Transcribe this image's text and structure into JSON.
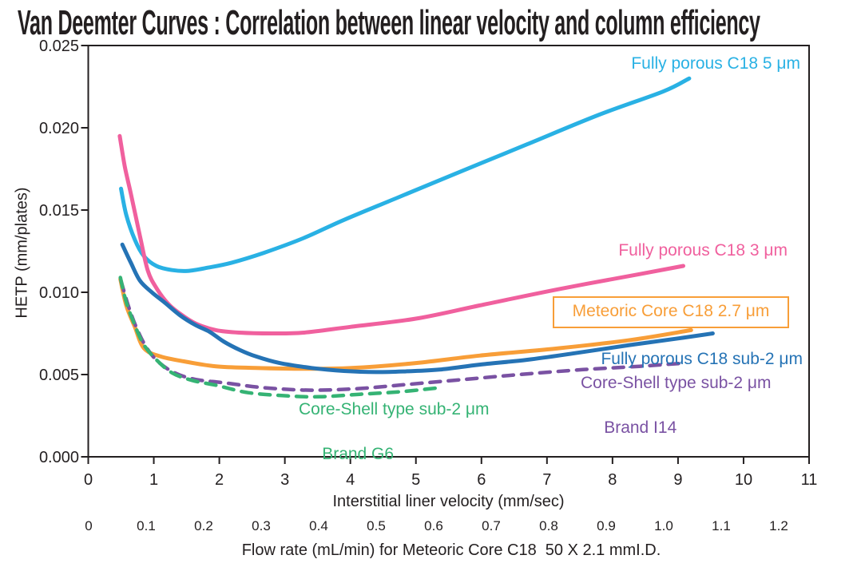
{
  "title": "Van Deemter Curves : Correlation between linear velocity and column efficiency",
  "chart_data": {
    "type": "line",
    "title": "Van Deemter Curves : Correlation between linear velocity and column efficiency",
    "grid": false,
    "legend_position": "labels-near-curves",
    "x_axis": {
      "label": "Interstitial liner velocity (mm/sec)",
      "min": 0,
      "max": 11,
      "ticks": [
        0,
        1,
        2,
        3,
        4,
        5,
        6,
        7,
        8,
        9,
        10,
        11
      ]
    },
    "x_axis2": {
      "label": "Flow rate (mL/min) for Meteoric Core C18  50 X 2.1 mmI.D.",
      "ticks": [
        "0",
        "0.1",
        "0.2",
        "0.3",
        "0.4",
        "0.5",
        "0.6",
        "0.7",
        "0.8",
        "0.9",
        "1.0",
        "1.1",
        "1.2"
      ]
    },
    "y_axis": {
      "label": "HETP (mm/plates)",
      "min": 0,
      "max": 0.025,
      "ticks": [
        "0.000",
        "0.005",
        "0.010",
        "0.015",
        "0.020",
        "0.025"
      ]
    },
    "axis_color": "#231f20",
    "series": [
      {
        "id": "fully-porous-c18-5um",
        "label": "Fully porous C18 5 μm",
        "color": "#29b1e4",
        "dashed": false,
        "points": [
          [
            0.5,
            0.0163
          ],
          [
            0.58,
            0.0147
          ],
          [
            0.71,
            0.0132
          ],
          [
            0.85,
            0.0122
          ],
          [
            1.04,
            0.0116
          ],
          [
            1.28,
            0.01135
          ],
          [
            1.52,
            0.0113
          ],
          [
            1.83,
            0.0115
          ],
          [
            2.19,
            0.0118
          ],
          [
            2.68,
            0.0124
          ],
          [
            3.29,
            0.0133
          ],
          [
            3.9,
            0.0144
          ],
          [
            4.75,
            0.0158
          ],
          [
            5.72,
            0.0174
          ],
          [
            6.7,
            0.019
          ],
          [
            7.8,
            0.0208
          ],
          [
            8.77,
            0.0222
          ],
          [
            9.17,
            0.023
          ]
        ]
      },
      {
        "id": "fully-porous-c18-3um",
        "label": "Fully porous C18 3 μm",
        "color": "#f0609e",
        "dashed": false,
        "points": [
          [
            0.48,
            0.0195
          ],
          [
            0.56,
            0.0176
          ],
          [
            0.65,
            0.016
          ],
          [
            0.79,
            0.0134
          ],
          [
            0.91,
            0.0113
          ],
          [
            1.05,
            0.0102
          ],
          [
            1.22,
            0.0093
          ],
          [
            1.4,
            0.0087
          ],
          [
            1.64,
            0.0081
          ],
          [
            1.95,
            0.0077
          ],
          [
            2.31,
            0.00755
          ],
          [
            2.8,
            0.0075
          ],
          [
            3.29,
            0.00755
          ],
          [
            4.0,
            0.0079
          ],
          [
            5.0,
            0.0084
          ],
          [
            5.97,
            0.0092
          ],
          [
            7.19,
            0.0102
          ],
          [
            8.41,
            0.0111
          ],
          [
            9.08,
            0.0116
          ]
        ]
      },
      {
        "id": "meteoric-core-c18-27um",
        "label": "Meteoric Core C18 2.7 μm",
        "color": "#f89e38",
        "dashed": false,
        "points": [
          [
            0.49,
            0.0108
          ],
          [
            0.58,
            0.0092
          ],
          [
            0.71,
            0.0079
          ],
          [
            0.85,
            0.0066
          ],
          [
            1.1,
            0.0061
          ],
          [
            1.46,
            0.0058
          ],
          [
            1.95,
            0.0055
          ],
          [
            2.56,
            0.0054
          ],
          [
            3.29,
            0.00535
          ],
          [
            4.02,
            0.0054
          ],
          [
            5.0,
            0.0057
          ],
          [
            5.97,
            0.00615
          ],
          [
            7.19,
            0.0066
          ],
          [
            8.28,
            0.0071
          ],
          [
            9.2,
            0.0077
          ]
        ]
      },
      {
        "id": "fully-porous-c18-sub2um",
        "label": "Fully porous C18 sub-2 μm",
        "color": "#2573b5",
        "dashed": false,
        "points": [
          [
            0.52,
            0.0129
          ],
          [
            0.65,
            0.0118
          ],
          [
            0.79,
            0.0107
          ],
          [
            0.97,
            0.01
          ],
          [
            1.16,
            0.0094
          ],
          [
            1.4,
            0.0086
          ],
          [
            1.64,
            0.008
          ],
          [
            1.85,
            0.0076
          ],
          [
            2.07,
            0.007
          ],
          [
            2.31,
            0.0065
          ],
          [
            2.56,
            0.0061
          ],
          [
            2.92,
            0.0057
          ],
          [
            3.41,
            0.0054
          ],
          [
            3.9,
            0.00522
          ],
          [
            4.39,
            0.00515
          ],
          [
            4.87,
            0.0052
          ],
          [
            5.36,
            0.0053
          ],
          [
            5.97,
            0.0056
          ],
          [
            6.7,
            0.0059
          ],
          [
            7.43,
            0.0063
          ],
          [
            8.28,
            0.0068
          ],
          [
            9.01,
            0.0072
          ],
          [
            9.53,
            0.0075
          ]
        ]
      },
      {
        "id": "core-shell-sub2um-brand-i14",
        "label": "Core-Shell type sub-2 μm",
        "label2": "Brand I14",
        "color": "#7a52a3",
        "dashed": true,
        "points": [
          [
            0.5,
            0.0107
          ],
          [
            0.61,
            0.0092
          ],
          [
            0.73,
            0.0079
          ],
          [
            0.88,
            0.0067
          ],
          [
            1.06,
            0.0058
          ],
          [
            1.32,
            0.0051
          ],
          [
            1.64,
            0.0047
          ],
          [
            2.07,
            0.0045
          ],
          [
            2.68,
            0.0042
          ],
          [
            3.41,
            0.00405
          ],
          [
            4.14,
            0.00415
          ],
          [
            4.87,
            0.0044
          ],
          [
            5.73,
            0.0047
          ],
          [
            6.58,
            0.005
          ],
          [
            7.55,
            0.0053
          ],
          [
            8.41,
            0.0055
          ],
          [
            9.11,
            0.0057
          ]
        ]
      },
      {
        "id": "core-shell-sub2um-brand-g6",
        "label": "Core-Shell type sub-2 μm",
        "label2": "Brand G6",
        "color": "#35b374",
        "dashed": true,
        "points": [
          [
            0.49,
            0.0109
          ],
          [
            0.58,
            0.0094
          ],
          [
            0.71,
            0.008
          ],
          [
            0.85,
            0.0068
          ],
          [
            1.04,
            0.0059
          ],
          [
            1.28,
            0.0051
          ],
          [
            1.58,
            0.00465
          ],
          [
            1.95,
            0.00435
          ],
          [
            2.44,
            0.0039
          ],
          [
            3.05,
            0.0037
          ],
          [
            3.53,
            0.00365
          ],
          [
            4.14,
            0.0038
          ],
          [
            4.75,
            0.00395
          ],
          [
            5.36,
            0.0042
          ]
        ]
      }
    ]
  }
}
